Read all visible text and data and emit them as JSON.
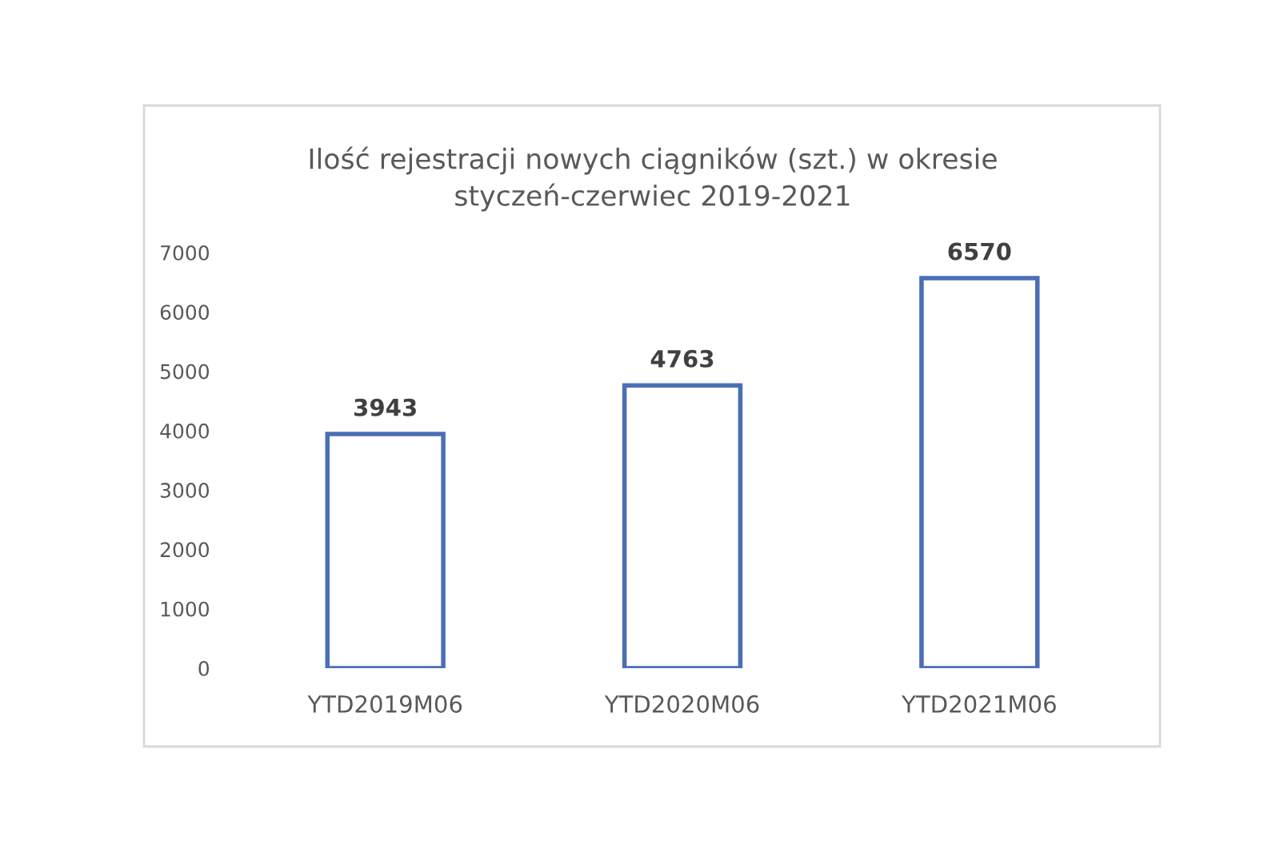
{
  "chart_data": {
    "type": "bar",
    "title": "Ilość rejestracji nowych ciągników (szt.) w okresie\nstyczeń-czerwiec 2019-2021",
    "categories": [
      "YTD2019M06",
      "YTD2020M06",
      "YTD2021M06"
    ],
    "values": [
      3943,
      4763,
      6570
    ],
    "color": "#4a6fb5",
    "ylim": [
      0,
      7000
    ],
    "yticks": [
      0,
      1000,
      2000,
      3000,
      4000,
      5000,
      6000,
      7000
    ],
    "data_labels": true,
    "grid": false,
    "legend": false
  }
}
